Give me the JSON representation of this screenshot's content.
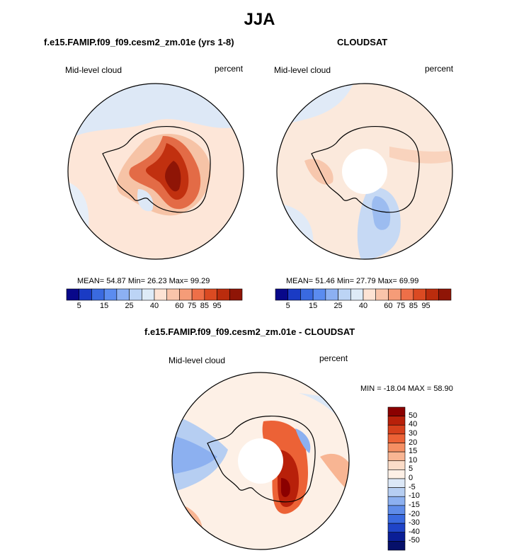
{
  "season": "JJA",
  "panels": [
    {
      "title": "f.e15.FAMIP.f09_f09.cesm2_zm.01e (yrs 1-8)",
      "variable": "Mid-level cloud",
      "units": "percent",
      "stats": "MEAN= 54.87  Min= 26.23  Max= 99.29",
      "colorbar_labels": [
        "5",
        "15",
        "25",
        "40",
        "60",
        "75",
        "85",
        "95"
      ]
    },
    {
      "title": "CLOUDSAT",
      "variable": "Mid-level cloud",
      "units": "percent",
      "stats": "MEAN= 51.46  Min= 27.79  Max= 69.99",
      "colorbar_labels": [
        "5",
        "15",
        "25",
        "40",
        "60",
        "75",
        "85",
        "95"
      ]
    }
  ],
  "diff_panel": {
    "title": "f.e15.FAMIP.f09_f09.cesm2_zm.01e - CLOUDSAT",
    "variable": "Mid-level cloud",
    "units": "percent",
    "stats": "MIN = -18.04 MAX =  58.90",
    "colorbar_labels": [
      "50",
      "40",
      "30",
      "20",
      "15",
      "10",
      "5",
      "0",
      "-5",
      "-10",
      "-15",
      "-20",
      "-30",
      "-40",
      "-50"
    ]
  },
  "colors": {
    "seq": [
      "#08088a",
      "#1a3bc4",
      "#3a6ae0",
      "#5b8cf0",
      "#8cb0f2",
      "#bcd4f5",
      "#deebf7",
      "#fde3d4",
      "#f9c4aa",
      "#f59c78",
      "#ee6f48",
      "#db4a22",
      "#bb2c0d",
      "#8f1506"
    ],
    "div": [
      "#8b0000",
      "#b8200a",
      "#d6401c",
      "#ec6236",
      "#f58f63",
      "#f8b593",
      "#fbdcc8",
      "#fdf0e6",
      "#dce8f7",
      "#b6cef2",
      "#8cb0f0",
      "#5f8ce9",
      "#3a6ae0",
      "#1f44c8",
      "#0a1e96",
      "#06106a"
    ]
  }
}
